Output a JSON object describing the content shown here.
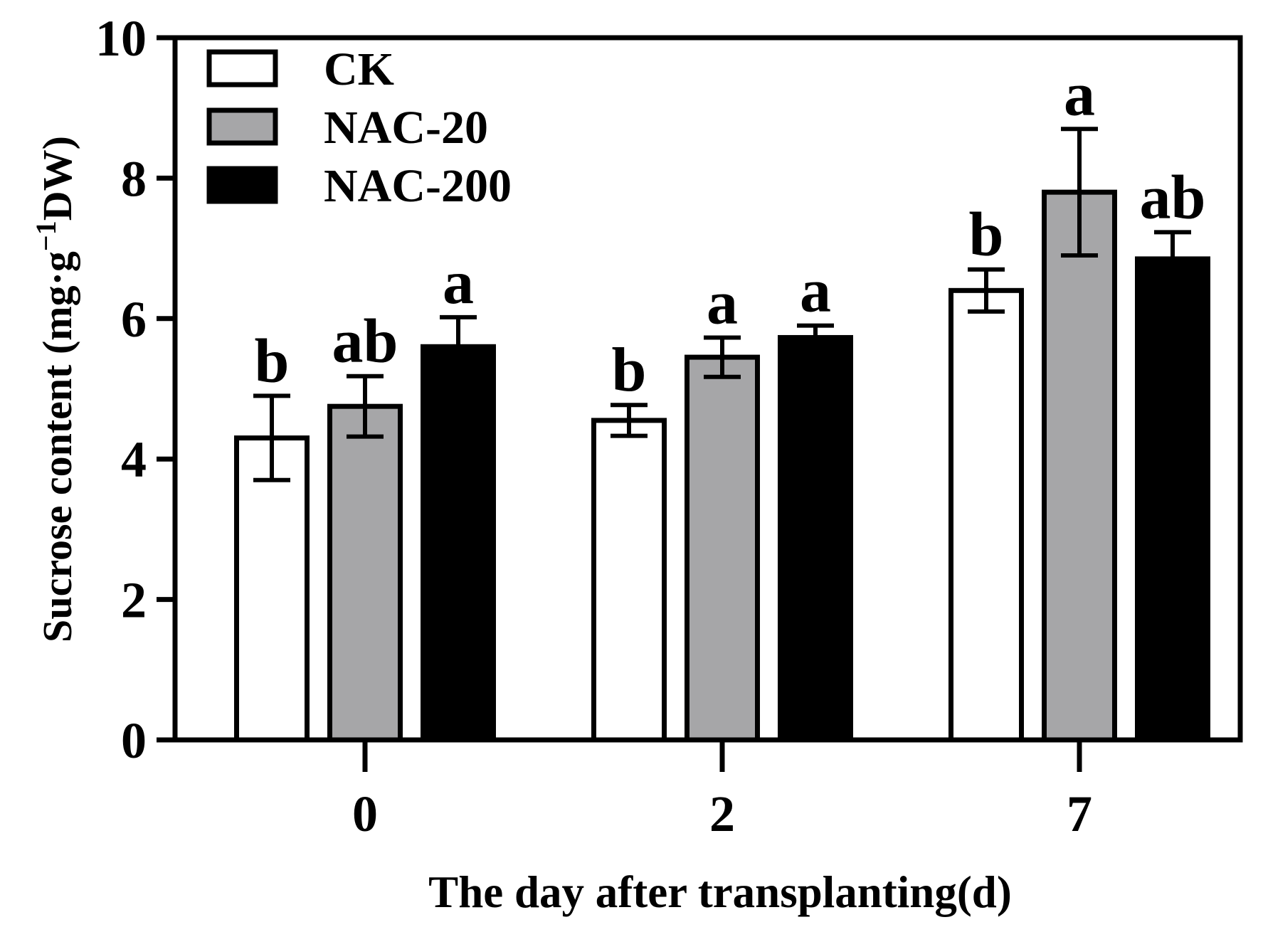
{
  "chart_data": {
    "type": "bar",
    "title": "",
    "xlabel": "The day after transplanting(d)",
    "ylabel": {
      "prefix": "Sucrose content (mg·g",
      "superscript": "−1",
      "suffix": "DW)"
    },
    "ylim": [
      0,
      10
    ],
    "yticks": [
      "0",
      "2",
      "4",
      "6",
      "8",
      "10"
    ],
    "categories": [
      "0",
      "2",
      "7"
    ],
    "legend_position": "top-left",
    "series": [
      {
        "name": "CK",
        "color": "#ffffff",
        "values": [
          4.3,
          4.55,
          6.4
        ],
        "errors": [
          0.6,
          0.22,
          0.3
        ],
        "letters": [
          "b",
          "b",
          "b"
        ]
      },
      {
        "name": "NAC-20",
        "color": "#a6a6a8",
        "values": [
          4.75,
          5.45,
          7.8
        ],
        "errors": [
          0.43,
          0.28,
          0.9
        ],
        "letters": [
          "ab",
          "a",
          "a"
        ]
      },
      {
        "name": "NAC-200",
        "color": "#000000",
        "values": [
          5.6,
          5.73,
          6.85
        ],
        "errors": [
          0.42,
          0.17,
          0.38
        ],
        "letters": [
          "a",
          "a",
          "ab"
        ]
      }
    ]
  }
}
